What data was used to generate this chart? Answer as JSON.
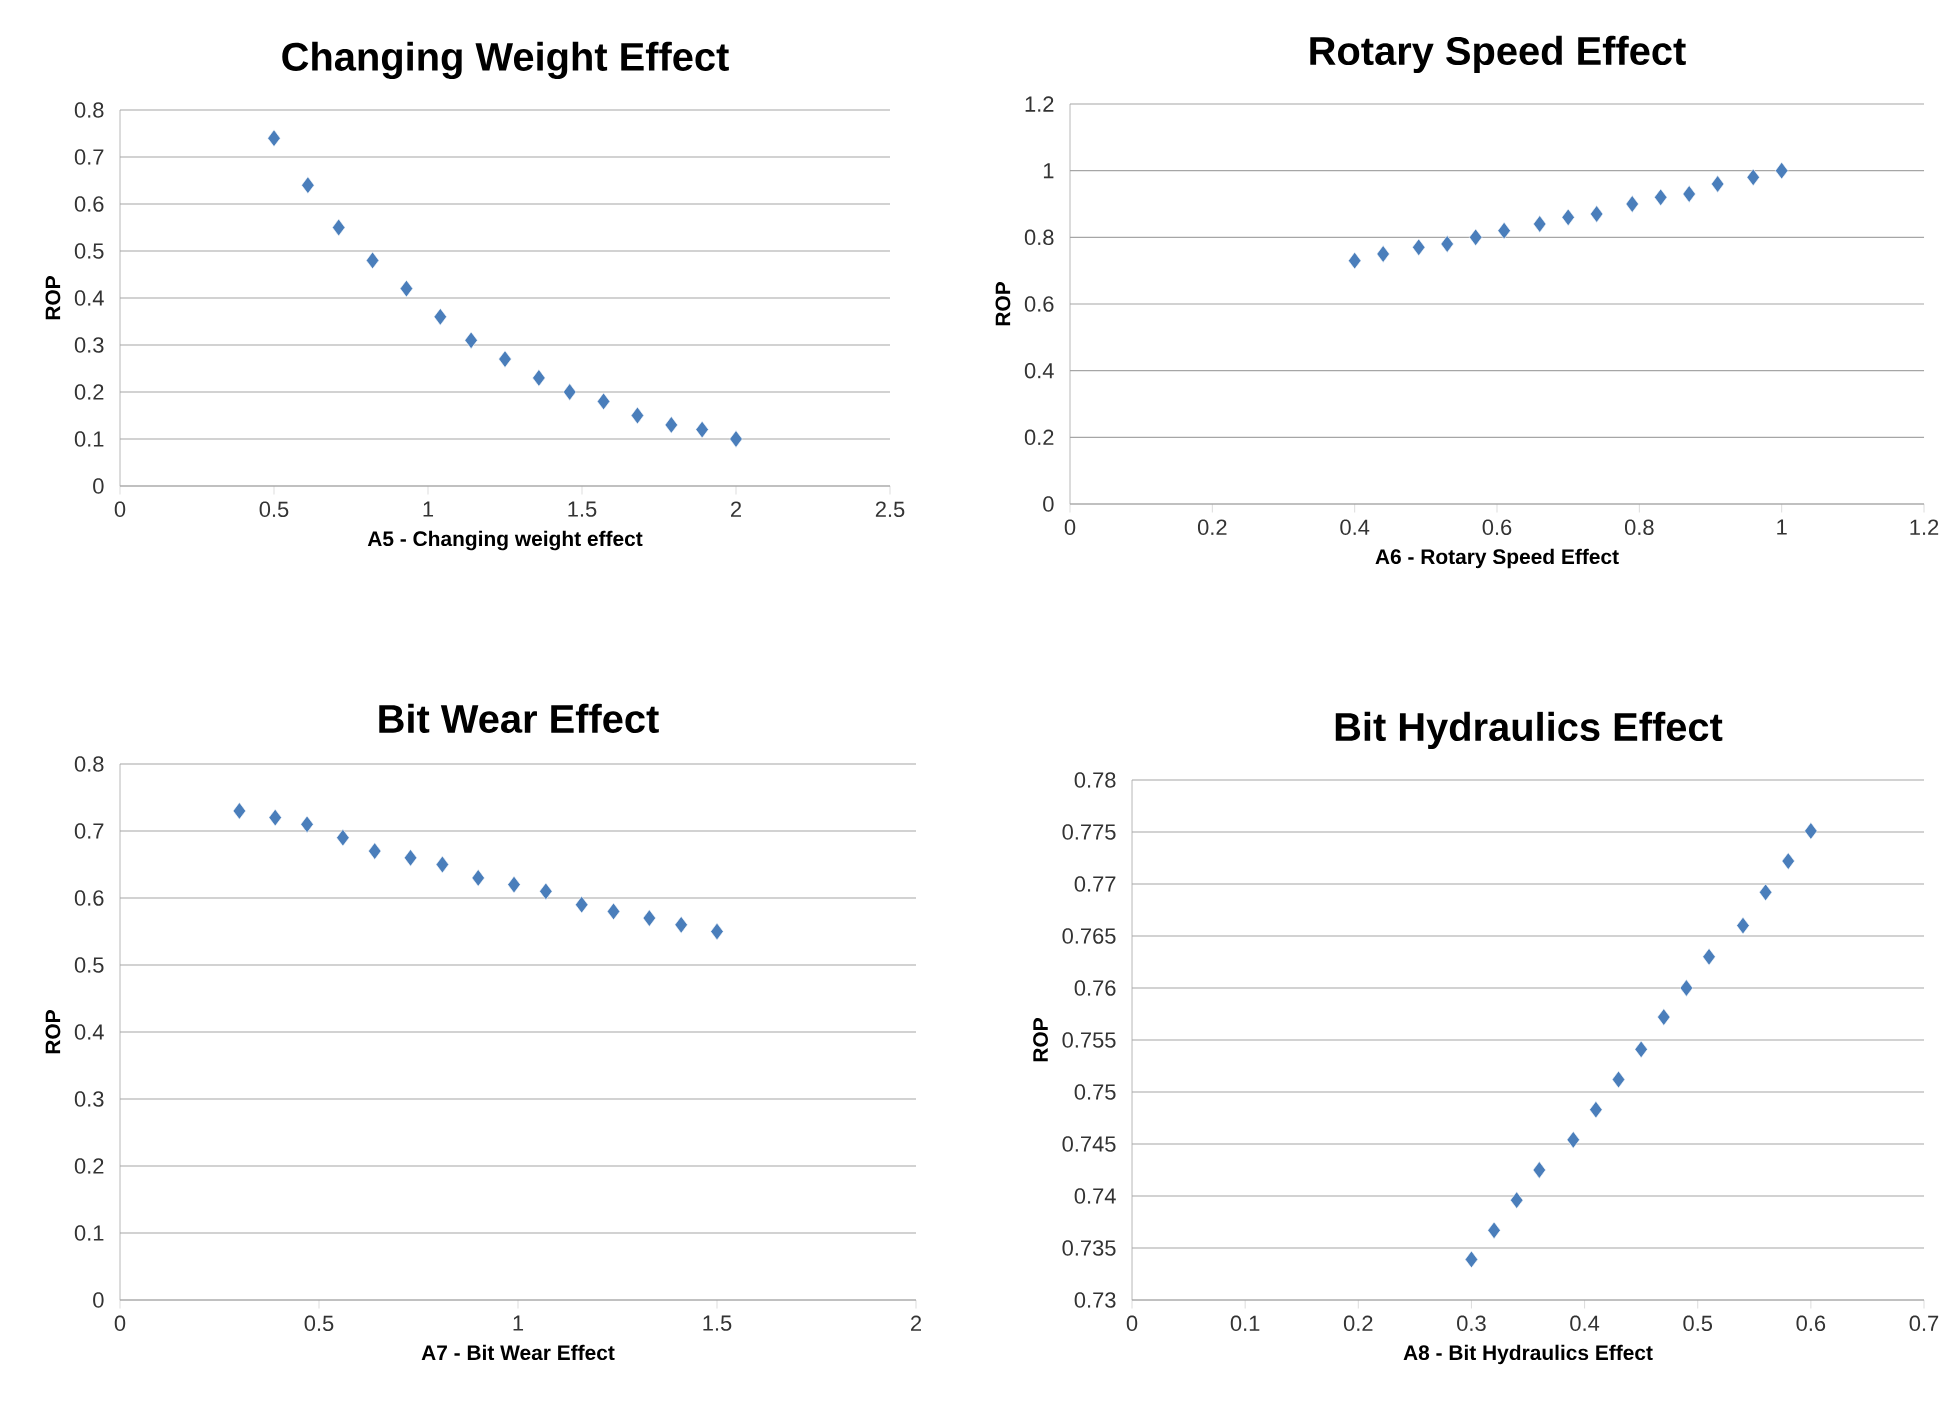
{
  "chart_data": [
    {
      "type": "scatter",
      "title": "Changing Weight Effect",
      "xlabel": "A5 - Changing weight effect",
      "ylabel": "ROP",
      "color": "#4a7ebb",
      "marker": "diamond",
      "grid": "y",
      "x": [
        0.5,
        0.61,
        0.71,
        0.82,
        0.93,
        1.04,
        1.14,
        1.25,
        1.36,
        1.46,
        1.57,
        1.68,
        1.79,
        1.89,
        2.0
      ],
      "values": [
        0.74,
        0.64,
        0.55,
        0.48,
        0.42,
        0.36,
        0.31,
        0.27,
        0.23,
        0.2,
        0.18,
        0.15,
        0.13,
        0.12,
        0.1
      ],
      "xlim": [
        0,
        2.5
      ],
      "xticks": [
        0,
        0.5,
        1,
        1.5,
        2,
        2.5
      ],
      "ylim": [
        0,
        0.8
      ],
      "yticks": [
        0,
        0.1,
        0.2,
        0.3,
        0.4,
        0.5,
        0.6,
        0.7,
        0.8
      ]
    },
    {
      "type": "scatter",
      "title": "Rotary Speed Effect",
      "xlabel": "A6 - Rotary Speed Effect",
      "ylabel": "ROP",
      "color": "#4a7ebb",
      "marker": "diamond",
      "grid": "y",
      "x": [
        0.4,
        0.44,
        0.49,
        0.53,
        0.57,
        0.61,
        0.66,
        0.7,
        0.74,
        0.79,
        0.83,
        0.87,
        0.91,
        0.96,
        1.0
      ],
      "values": [
        0.73,
        0.75,
        0.77,
        0.78,
        0.8,
        0.82,
        0.84,
        0.86,
        0.87,
        0.9,
        0.92,
        0.93,
        0.96,
        0.98,
        1.0
      ],
      "xlim": [
        0,
        1.2
      ],
      "xticks": [
        0,
        0.2,
        0.4,
        0.6,
        0.8,
        1,
        1.2
      ],
      "ylim": [
        0,
        1.2
      ],
      "yticks": [
        0,
        0.2,
        0.4,
        0.6,
        0.8,
        1,
        1.2
      ]
    },
    {
      "type": "scatter",
      "title": "Bit Wear Effect",
      "xlabel": "A7 - Bit Wear Effect",
      "ylabel": "ROP",
      "color": "#4a7ebb",
      "marker": "diamond",
      "grid": "y",
      "x": [
        0.3,
        0.39,
        0.47,
        0.56,
        0.64,
        0.73,
        0.81,
        0.9,
        0.99,
        1.07,
        1.16,
        1.24,
        1.33,
        1.41,
        1.5
      ],
      "values": [
        0.73,
        0.72,
        0.71,
        0.69,
        0.67,
        0.66,
        0.65,
        0.63,
        0.62,
        0.61,
        0.59,
        0.58,
        0.57,
        0.56,
        0.55
      ],
      "xlim": [
        0,
        2
      ],
      "xticks": [
        0,
        0.5,
        1,
        1.5,
        2
      ],
      "ylim": [
        0,
        0.8
      ],
      "yticks": [
        0,
        0.1,
        0.2,
        0.3,
        0.4,
        0.5,
        0.6,
        0.7,
        0.8
      ]
    },
    {
      "type": "scatter",
      "title": "Bit Hydraulics Effect",
      "xlabel": "A8 - Bit Hydraulics Effect",
      "ylabel": "ROP",
      "color": "#4a7ebb",
      "marker": "diamond",
      "grid": "y",
      "x": [
        0.3,
        0.32,
        0.34,
        0.36,
        0.39,
        0.41,
        0.43,
        0.45,
        0.47,
        0.49,
        0.51,
        0.54,
        0.56,
        0.58,
        0.6
      ],
      "values": [
        0.7339,
        0.7367,
        0.7396,
        0.7425,
        0.7454,
        0.7483,
        0.7512,
        0.7541,
        0.7572,
        0.76,
        0.763,
        0.766,
        0.7692,
        0.7722,
        0.7751
      ],
      "xlim": [
        0,
        0.7
      ],
      "xticks": [
        0,
        0.1,
        0.2,
        0.3,
        0.4,
        0.5,
        0.6,
        0.7
      ],
      "ylim": [
        0.73,
        0.78
      ],
      "yticks": [
        0.73,
        0.735,
        0.74,
        0.745,
        0.75,
        0.755,
        0.76,
        0.765,
        0.77,
        0.775,
        0.78
      ]
    }
  ]
}
